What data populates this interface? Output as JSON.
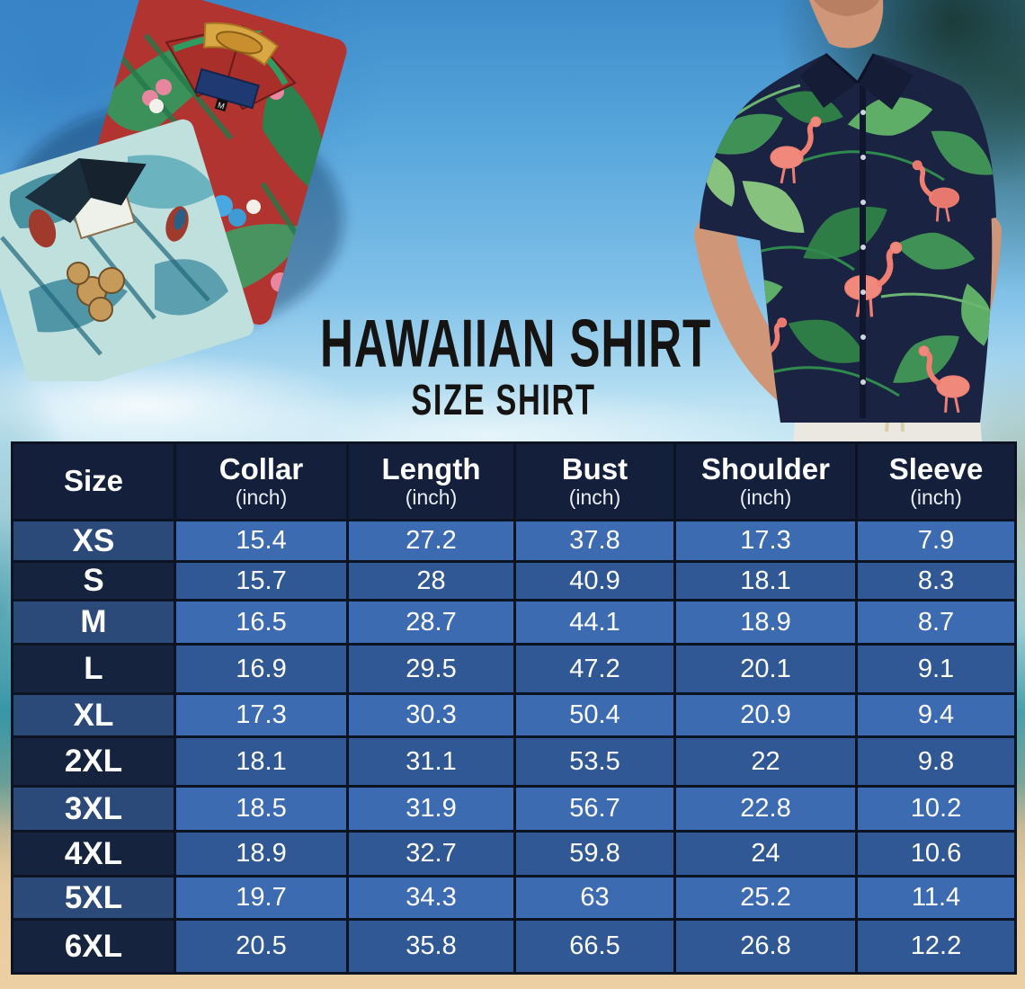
{
  "header": {
    "title": "HAWAIIAN SHIRT",
    "subtitle": "SIZE SHIRT"
  },
  "hero": {
    "left_photo_alt": "two folded hawaiian shirts (red tropical print, teal hibiscus-parrot print)",
    "right_photo_alt": "man wearing navy flamingo-and-monstera hawaiian shirt with white pants",
    "red_shirt": {
      "tag_size": "M"
    }
  },
  "chart_data": {
    "type": "table",
    "title": "Hawaiian Shirt Size Chart",
    "columns": [
      {
        "label": "Size",
        "unit": ""
      },
      {
        "label": "Collar",
        "unit": "(inch)"
      },
      {
        "label": "Length",
        "unit": "(inch)"
      },
      {
        "label": "Bust",
        "unit": "(inch)"
      },
      {
        "label": "Shoulder",
        "unit": "(inch)"
      },
      {
        "label": "Sleeve",
        "unit": "(inch)"
      }
    ],
    "rows": [
      {
        "size": "XS",
        "values": [
          "15.4",
          "27.2",
          "37.8",
          "17.3",
          "7.9"
        ]
      },
      {
        "size": "S",
        "values": [
          "15.7",
          "28",
          "40.9",
          "18.1",
          "8.3"
        ]
      },
      {
        "size": "M",
        "values": [
          "16.5",
          "28.7",
          "44.1",
          "18.9",
          "8.7"
        ]
      },
      {
        "size": "L",
        "values": [
          "16.9",
          "29.5",
          "47.2",
          "20.1",
          "9.1"
        ]
      },
      {
        "size": "XL",
        "values": [
          "17.3",
          "30.3",
          "50.4",
          "20.9",
          "9.4"
        ]
      },
      {
        "size": "2XL",
        "values": [
          "18.1",
          "31.1",
          "53.5",
          "22",
          "9.8"
        ]
      },
      {
        "size": "3XL",
        "values": [
          "18.5",
          "31.9",
          "56.7",
          "22.8",
          "10.2"
        ]
      },
      {
        "size": "4XL",
        "values": [
          "18.9",
          "32.7",
          "59.8",
          "24",
          "10.6"
        ]
      },
      {
        "size": "5XL",
        "values": [
          "19.7",
          "34.3",
          "63",
          "25.2",
          "11.4"
        ]
      },
      {
        "size": "6XL",
        "values": [
          "20.5",
          "35.8",
          "66.5",
          "26.8",
          "12.2"
        ]
      }
    ]
  },
  "colors": {
    "table_header_bg": "#14203b",
    "row_light_values_bg": "#3d6bb1",
    "row_dark_values_bg": "#2f5894",
    "row_light_size_bg": "#2b4979",
    "row_dark_size_bg": "#16233e",
    "table_border": "#0c1424",
    "table_text": "#ffffff",
    "title_text": "#161412",
    "sky_top": "#3f8ccb",
    "sand": "#eccfa3",
    "model_shirt_navy": "#1b2342",
    "model_shirt_leaf_green": "#3f9156",
    "model_shirt_flamingo": "#f0897b",
    "red_shirt": "#b23430",
    "teal_shirt": "#bfe0dd"
  }
}
